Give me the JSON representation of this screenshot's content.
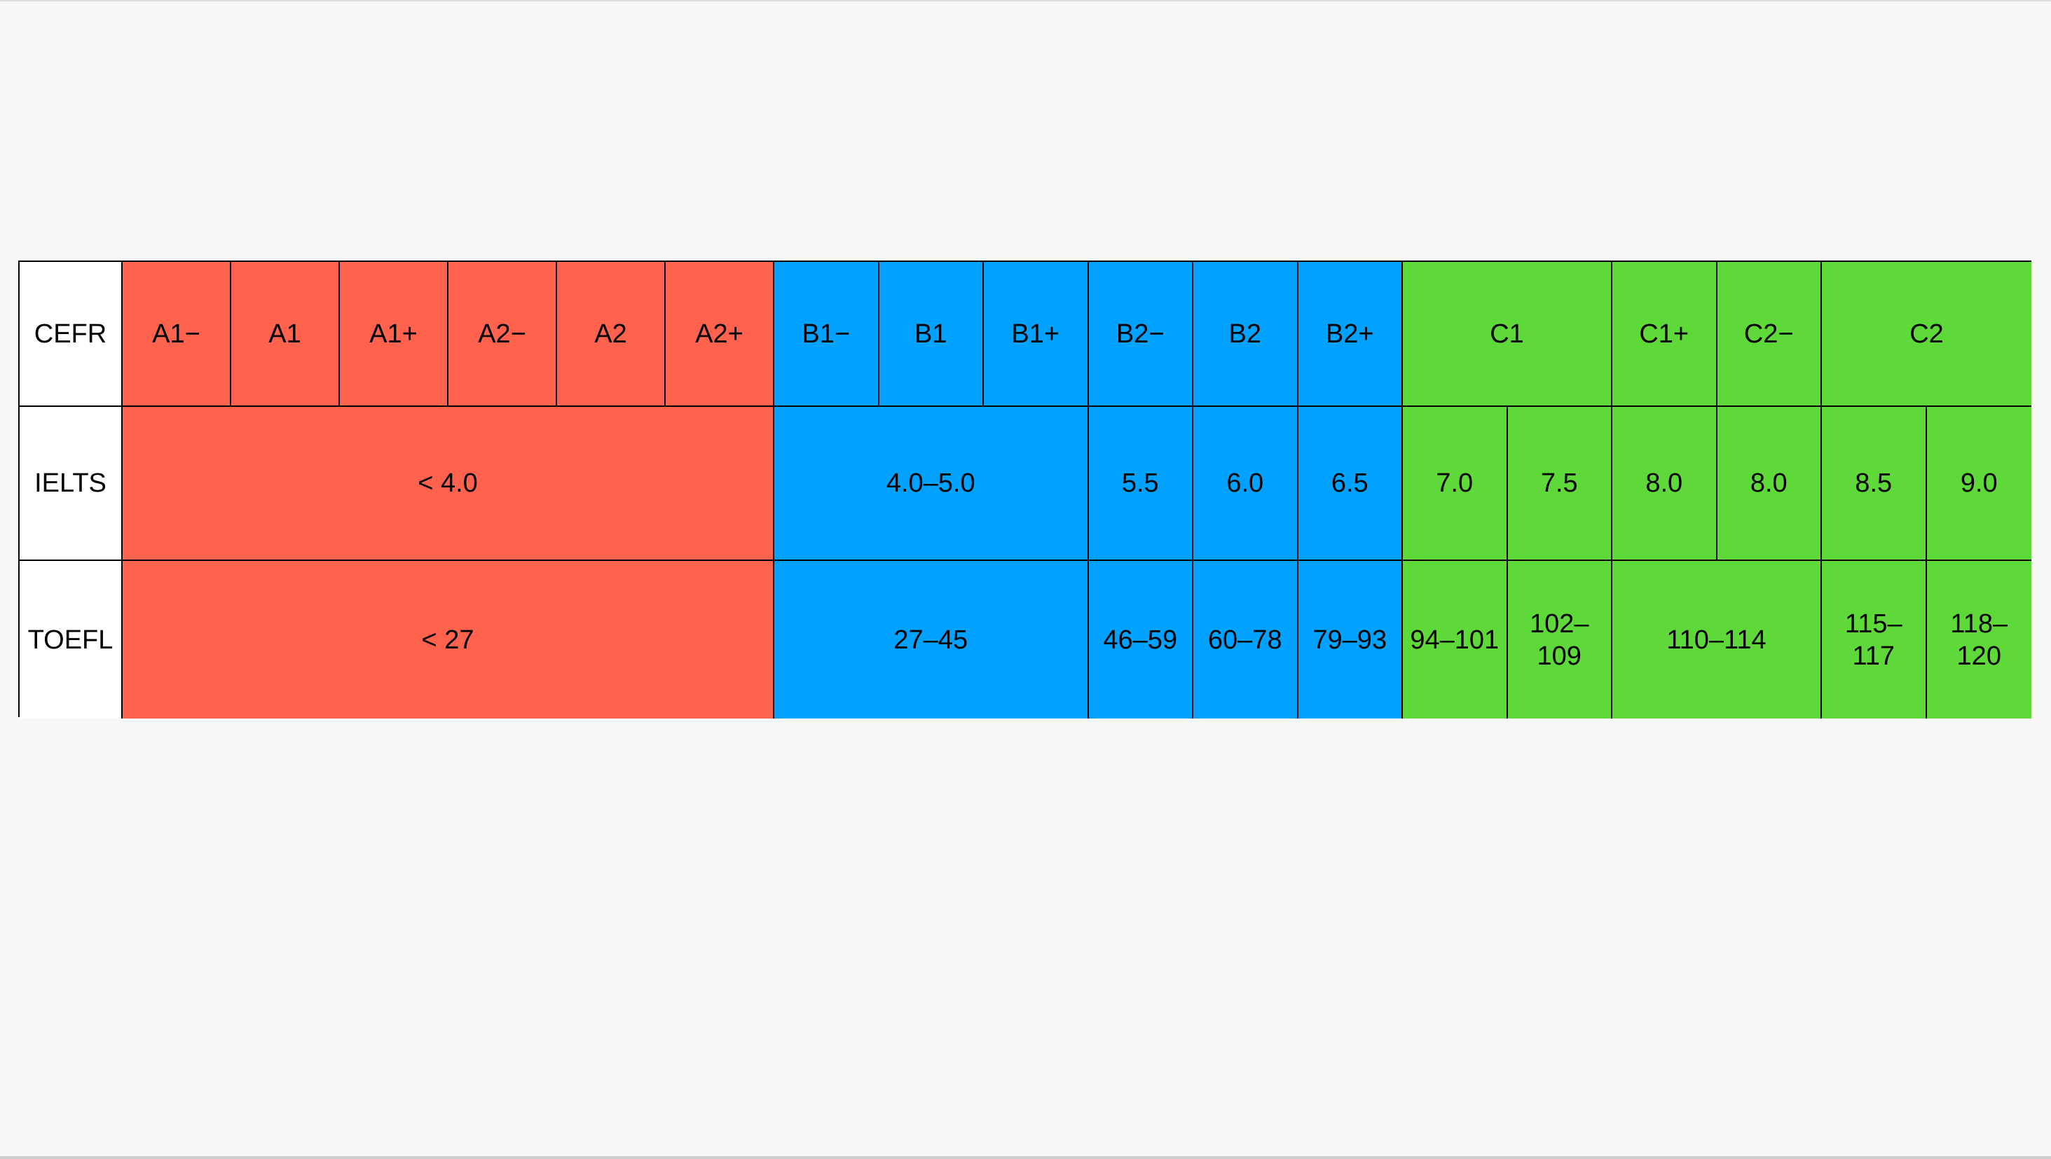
{
  "colors": {
    "a_band": "#ff634d",
    "b_band": "#00a1ff",
    "c_band": "#5fd83a",
    "label_bg": "#ffffff",
    "page_bg": "#f8f8f8"
  },
  "rows": {
    "cefr_label": "CEFR",
    "ielts_label": "IELTS",
    "toefl_label": "TOEFL"
  },
  "cefr": [
    "A1−",
    "A1",
    "A1+",
    "A2−",
    "A2",
    "A2+",
    "B1−",
    "B1",
    "B1+",
    "B2−",
    "B2",
    "B2+",
    "C1",
    "C1+",
    "C2−",
    "C2"
  ],
  "ielts": [
    "< 4.0",
    "4.0–5.0",
    "5.5",
    "6.0",
    "6.5",
    "7.0",
    "7.5",
    "8.0",
    "8.0",
    "8.5",
    "9.0"
  ],
  "toefl": [
    "< 27",
    "27–45",
    "46–59",
    "60–78",
    "79–93",
    "94–101",
    "102–\n109",
    "110–114",
    "115–\n117",
    "118–\n120"
  ]
}
